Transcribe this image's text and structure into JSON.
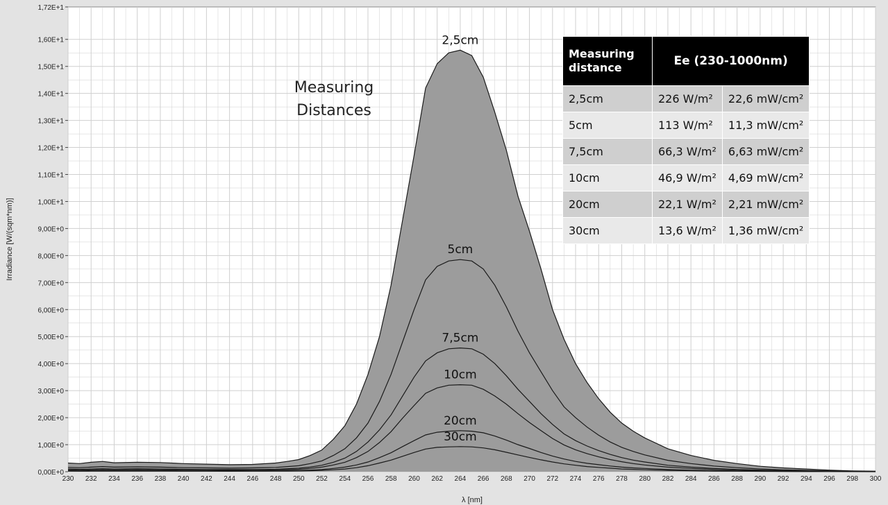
{
  "chart_data": {
    "type": "area",
    "xlabel": "λ [nm]",
    "ylabel": "Irradiance [W/(sqm*nm)]",
    "xlim": [
      230,
      300
    ],
    "ylim": [
      0,
      17.2
    ],
    "x_tick_labels": [
      "230",
      "232",
      "234",
      "236",
      "238",
      "240",
      "242",
      "244",
      "246",
      "248",
      "250",
      "252",
      "254",
      "256",
      "258",
      "260",
      "262",
      "264",
      "266",
      "268",
      "270",
      "272",
      "274",
      "276",
      "278",
      "280",
      "282",
      "284",
      "286",
      "288",
      "290",
      "292",
      "294",
      "296",
      "298",
      "300"
    ],
    "y_tick_labels": [
      "0,00E+0",
      "1,00E+0",
      "2,00E+0",
      "3,00E+0",
      "4,00E+0",
      "5,00E+0",
      "6,00E+0",
      "7,00E+0",
      "8,00E+0",
      "9,00E+0",
      "1,00E+1",
      "1,10E+1",
      "1,20E+1",
      "1,30E+1",
      "1,40E+1",
      "1,50E+1",
      "1,60E+1",
      "1,72E+1"
    ],
    "grid": true,
    "x": [
      230,
      231,
      232,
      233,
      234,
      236,
      238,
      240,
      242,
      244,
      246,
      248,
      249,
      250,
      251,
      252,
      253,
      254,
      255,
      256,
      257,
      258,
      259,
      260,
      261,
      262,
      263,
      264,
      265,
      266,
      267,
      268,
      269,
      270,
      271,
      272,
      273,
      274,
      275,
      276,
      277,
      278,
      279,
      280,
      282,
      284,
      286,
      288,
      290,
      292,
      294,
      296,
      298,
      300
    ],
    "series": [
      {
        "name": "2,5cm",
        "values": [
          0.32,
          0.3,
          0.35,
          0.38,
          0.33,
          0.35,
          0.34,
          0.3,
          0.28,
          0.26,
          0.27,
          0.32,
          0.38,
          0.45,
          0.6,
          0.8,
          1.2,
          1.7,
          2.5,
          3.6,
          5.0,
          6.9,
          9.3,
          11.7,
          14.2,
          15.1,
          15.5,
          15.6,
          15.4,
          14.6,
          13.3,
          11.9,
          10.2,
          8.9,
          7.5,
          6.0,
          4.9,
          4.0,
          3.3,
          2.7,
          2.2,
          1.8,
          1.5,
          1.25,
          0.85,
          0.6,
          0.42,
          0.3,
          0.2,
          0.14,
          0.1,
          0.06,
          0.03,
          0.02
        ]
      },
      {
        "name": "5cm",
        "values": [
          0.16,
          0.15,
          0.17,
          0.19,
          0.17,
          0.18,
          0.17,
          0.15,
          0.14,
          0.13,
          0.14,
          0.16,
          0.19,
          0.22,
          0.3,
          0.4,
          0.6,
          0.85,
          1.25,
          1.8,
          2.6,
          3.6,
          4.8,
          6.0,
          7.1,
          7.6,
          7.8,
          7.85,
          7.8,
          7.5,
          6.9,
          6.1,
          5.2,
          4.4,
          3.7,
          3.0,
          2.4,
          2.0,
          1.65,
          1.35,
          1.1,
          0.9,
          0.75,
          0.62,
          0.42,
          0.3,
          0.21,
          0.15,
          0.1,
          0.07,
          0.05,
          0.03,
          0.015,
          0.01
        ]
      },
      {
        "name": "7,5cm",
        "values": [
          0.1,
          0.09,
          0.1,
          0.11,
          0.1,
          0.11,
          0.1,
          0.09,
          0.08,
          0.08,
          0.08,
          0.09,
          0.11,
          0.13,
          0.17,
          0.24,
          0.35,
          0.5,
          0.75,
          1.1,
          1.55,
          2.1,
          2.8,
          3.5,
          4.1,
          4.4,
          4.55,
          4.58,
          4.55,
          4.35,
          4.0,
          3.55,
          3.05,
          2.6,
          2.15,
          1.75,
          1.4,
          1.15,
          0.95,
          0.78,
          0.64,
          0.52,
          0.43,
          0.36,
          0.24,
          0.17,
          0.12,
          0.085,
          0.06,
          0.04,
          0.03,
          0.02,
          0.01,
          0.005
        ]
      },
      {
        "name": "10cm",
        "values": [
          0.07,
          0.06,
          0.07,
          0.08,
          0.07,
          0.08,
          0.07,
          0.06,
          0.06,
          0.05,
          0.06,
          0.07,
          0.08,
          0.09,
          0.12,
          0.17,
          0.25,
          0.35,
          0.52,
          0.75,
          1.08,
          1.48,
          1.98,
          2.45,
          2.9,
          3.1,
          3.2,
          3.22,
          3.2,
          3.05,
          2.8,
          2.5,
          2.15,
          1.82,
          1.52,
          1.23,
          0.99,
          0.81,
          0.67,
          0.55,
          0.45,
          0.37,
          0.3,
          0.25,
          0.17,
          0.12,
          0.085,
          0.06,
          0.04,
          0.03,
          0.02,
          0.015,
          0.008,
          0.004
        ]
      },
      {
        "name": "20cm",
        "values": [
          0.035,
          0.03,
          0.035,
          0.04,
          0.035,
          0.04,
          0.035,
          0.03,
          0.03,
          0.025,
          0.03,
          0.035,
          0.04,
          0.045,
          0.06,
          0.08,
          0.12,
          0.17,
          0.25,
          0.36,
          0.52,
          0.7,
          0.93,
          1.15,
          1.36,
          1.46,
          1.5,
          1.52,
          1.5,
          1.44,
          1.32,
          1.17,
          1.0,
          0.86,
          0.71,
          0.58,
          0.47,
          0.38,
          0.31,
          0.26,
          0.21,
          0.17,
          0.14,
          0.12,
          0.08,
          0.056,
          0.04,
          0.028,
          0.02,
          0.014,
          0.01,
          0.007,
          0.004,
          0.002
        ]
      },
      {
        "name": "30cm",
        "values": [
          0.02,
          0.018,
          0.02,
          0.024,
          0.02,
          0.024,
          0.02,
          0.018,
          0.017,
          0.015,
          0.017,
          0.02,
          0.024,
          0.028,
          0.036,
          0.05,
          0.073,
          0.1,
          0.15,
          0.22,
          0.32,
          0.43,
          0.57,
          0.71,
          0.84,
          0.9,
          0.92,
          0.93,
          0.92,
          0.88,
          0.81,
          0.72,
          0.62,
          0.53,
          0.44,
          0.36,
          0.29,
          0.24,
          0.19,
          0.16,
          0.13,
          0.1,
          0.087,
          0.072,
          0.05,
          0.034,
          0.024,
          0.017,
          0.012,
          0.008,
          0.006,
          0.004,
          0.002,
          0.001
        ]
      }
    ],
    "annotations": [
      {
        "text": "Measuring",
        "text2": "Distances"
      }
    ]
  },
  "table": {
    "header_col1_line1": "Measuring",
    "header_col1_line2": "distance",
    "header_col2": "Ee  (230-1000nm)",
    "rows": [
      {
        "distance": "2,5cm",
        "wm2": "226 W/m²",
        "mwcm2": "22,6 mW/cm²"
      },
      {
        "distance": "5cm",
        "wm2": "113 W/m²",
        "mwcm2": "11,3 mW/cm²"
      },
      {
        "distance": "7,5cm",
        "wm2": "66,3 W/m²",
        "mwcm2": "6,63 mW/cm²"
      },
      {
        "distance": "10cm",
        "wm2": "46,9 W/m²",
        "mwcm2": "4,69 mW/cm²"
      },
      {
        "distance": "20cm",
        "wm2": "22,1 W/m²",
        "mwcm2": "2,21 mW/cm²"
      },
      {
        "distance": "30cm",
        "wm2": "13,6 W/m²",
        "mwcm2": "1,36 mW/cm²"
      }
    ]
  },
  "colors": {
    "area_fill": "#9c9c9c",
    "line": "#1a1a1a",
    "plot_bg": "#ffffff",
    "grid": "#cfcfcf"
  }
}
